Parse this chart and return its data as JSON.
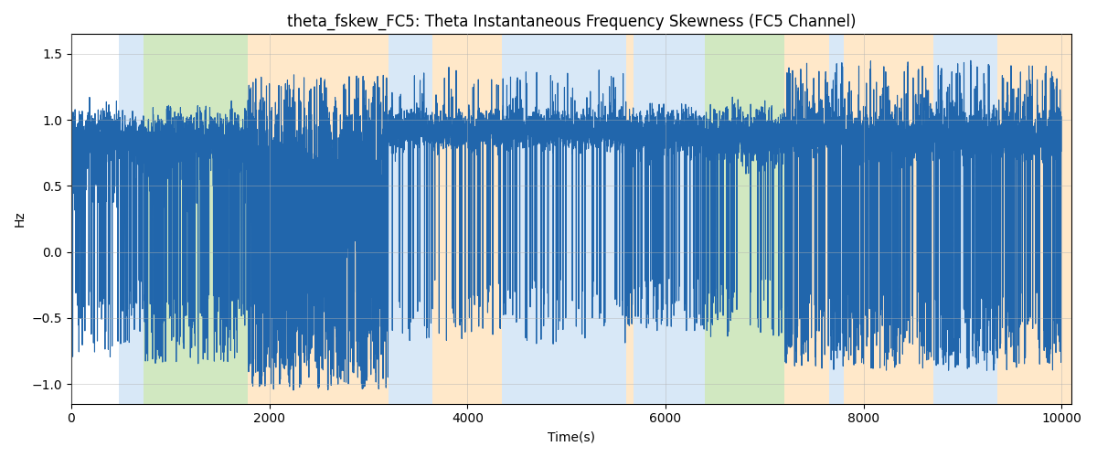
{
  "title": "theta_fskew_FC5: Theta Instantaneous Frequency Skewness (FC5 Channel)",
  "xlabel": "Time(s)",
  "ylabel": "Hz",
  "xlim": [
    0,
    10100
  ],
  "ylim": [
    -1.15,
    1.65
  ],
  "yticks": [
    -1.0,
    -0.5,
    0.0,
    0.5,
    1.0,
    1.5
  ],
  "xticks": [
    0,
    2000,
    4000,
    6000,
    8000,
    10000
  ],
  "figsize": [
    12.0,
    5.0
  ],
  "dpi": 100,
  "line_color": "#2166ac",
  "line_width": 0.8,
  "bands": [
    {
      "xmin": 480,
      "xmax": 730,
      "color": "#aaccee",
      "alpha": 0.45
    },
    {
      "xmin": 730,
      "xmax": 1780,
      "color": "#99cc77",
      "alpha": 0.45
    },
    {
      "xmin": 1780,
      "xmax": 3200,
      "color": "#ffcc88",
      "alpha": 0.45
    },
    {
      "xmin": 3200,
      "xmax": 3650,
      "color": "#aaccee",
      "alpha": 0.45
    },
    {
      "xmin": 3650,
      "xmax": 4350,
      "color": "#ffcc88",
      "alpha": 0.45
    },
    {
      "xmin": 4350,
      "xmax": 5600,
      "color": "#aaccee",
      "alpha": 0.45
    },
    {
      "xmin": 5600,
      "xmax": 5680,
      "color": "#ffcc88",
      "alpha": 0.45
    },
    {
      "xmin": 5680,
      "xmax": 6080,
      "color": "#aaccee",
      "alpha": 0.45
    },
    {
      "xmin": 6080,
      "xmax": 6400,
      "color": "#aaccee",
      "alpha": 0.45
    },
    {
      "xmin": 6400,
      "xmax": 7200,
      "color": "#99cc77",
      "alpha": 0.45
    },
    {
      "xmin": 7200,
      "xmax": 7650,
      "color": "#ffcc88",
      "alpha": 0.45
    },
    {
      "xmin": 7650,
      "xmax": 7800,
      "color": "#aaccee",
      "alpha": 0.45
    },
    {
      "xmin": 7800,
      "xmax": 8700,
      "color": "#ffcc88",
      "alpha": 0.45
    },
    {
      "xmin": 8700,
      "xmax": 9350,
      "color": "#aaccee",
      "alpha": 0.45
    },
    {
      "xmin": 9350,
      "xmax": 10100,
      "color": "#ffcc88",
      "alpha": 0.45
    }
  ],
  "seed": 42
}
